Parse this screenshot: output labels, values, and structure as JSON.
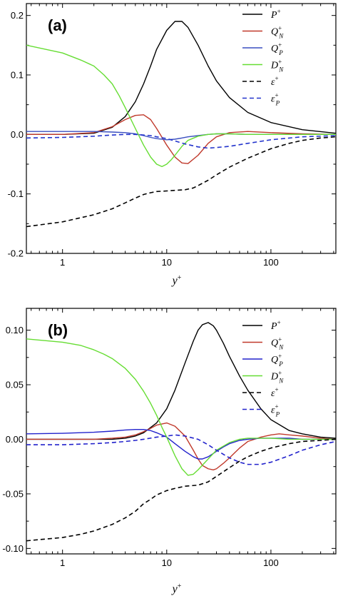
{
  "chart_data": [
    {
      "type": "line",
      "panel_label": "(a)",
      "xlabel": "y+",
      "xscale": "log",
      "xlim": [
        0.45,
        420
      ],
      "ylim": [
        -0.2,
        0.22
      ],
      "x_ticks": [
        {
          "v": 1,
          "label": "1"
        },
        {
          "v": 10,
          "label": "10"
        },
        {
          "v": 100,
          "label": "100"
        }
      ],
      "y_ticks": [
        {
          "v": -0.2,
          "label": "-0.2"
        },
        {
          "v": -0.1,
          "label": "-0.1"
        },
        {
          "v": 0.0,
          "label": "0.0"
        },
        {
          "v": 0.1,
          "label": "0.1"
        },
        {
          "v": 0.2,
          "label": "0.2"
        }
      ],
      "legend_position": "top-right",
      "series": [
        {
          "name": "P+",
          "base": "P",
          "sup": "+",
          "sub": "",
          "color": "#000000",
          "dash": "solid",
          "x": [
            0.45,
            1,
            2,
            3,
            4,
            5,
            6,
            7,
            8,
            10,
            12,
            14,
            16,
            20,
            25,
            30,
            40,
            60,
            100,
            200,
            420
          ],
          "y": [
            0,
            0,
            0.002,
            0.012,
            0.03,
            0.055,
            0.085,
            0.115,
            0.143,
            0.175,
            0.19,
            0.19,
            0.18,
            0.15,
            0.115,
            0.09,
            0.062,
            0.037,
            0.02,
            0.008,
            0.002
          ]
        },
        {
          "name": "Q+N",
          "base": "Q",
          "sup": "+",
          "sub": "N",
          "color": "#c0392b",
          "dash": "solid",
          "x": [
            0.45,
            1,
            2,
            3,
            4,
            5,
            6,
            7,
            8,
            10,
            12,
            14,
            16,
            20,
            25,
            30,
            40,
            60,
            100,
            200,
            420
          ],
          "y": [
            0,
            0,
            0.003,
            0.013,
            0.025,
            0.032,
            0.033,
            0.025,
            0.01,
            -0.018,
            -0.038,
            -0.048,
            -0.049,
            -0.035,
            -0.015,
            -0.004,
            0.003,
            0.005,
            0.003,
            0.001,
            0
          ]
        },
        {
          "name": "Q+P",
          "base": "Q",
          "sup": "+",
          "sub": "P",
          "color": "#3a4fc0",
          "dash": "solid",
          "x": [
            0.45,
            1,
            2,
            3,
            4,
            5,
            6,
            7,
            8,
            10,
            12,
            14,
            16,
            20,
            25,
            30,
            40,
            60,
            100,
            200,
            420
          ],
          "y": [
            0.005,
            0.005,
            0.005,
            0.004,
            0.003,
            0.001,
            -0.002,
            -0.005,
            -0.007,
            -0.009,
            -0.008,
            -0.006,
            -0.004,
            -0.002,
            0,
            0.001,
            0.001,
            0,
            0,
            0,
            0
          ]
        },
        {
          "name": "D+N",
          "base": "D",
          "sup": "+",
          "sub": "N",
          "color": "#66dd33",
          "dash": "solid",
          "x": [
            0.45,
            1,
            1.5,
            2,
            2.5,
            3,
            3.5,
            4,
            5,
            6,
            7,
            8,
            9,
            10,
            11,
            12,
            14,
            16,
            20,
            25,
            30,
            40,
            60,
            100,
            200,
            420
          ],
          "y": [
            0.15,
            0.137,
            0.125,
            0.115,
            0.1,
            0.085,
            0.065,
            0.045,
            0.01,
            -0.018,
            -0.038,
            -0.05,
            -0.054,
            -0.05,
            -0.043,
            -0.035,
            -0.02,
            -0.01,
            -0.003,
            0,
            0.001,
            0.001,
            0,
            0,
            0,
            0
          ]
        },
        {
          "name": "ε+",
          "base": "ε",
          "sup": "+",
          "sub": "",
          "color": "#000000",
          "dash": "dashed",
          "x": [
            0.45,
            1,
            2,
            3,
            4,
            5,
            6,
            7,
            8,
            10,
            12,
            15,
            18,
            20,
            25,
            30,
            40,
            60,
            80,
            100,
            150,
            200,
            300,
            420
          ],
          "y": [
            -0.155,
            -0.147,
            -0.135,
            -0.125,
            -0.115,
            -0.107,
            -0.101,
            -0.098,
            -0.096,
            -0.095,
            -0.094,
            -0.093,
            -0.09,
            -0.086,
            -0.077,
            -0.068,
            -0.055,
            -0.04,
            -0.031,
            -0.024,
            -0.015,
            -0.01,
            -0.006,
            -0.004
          ]
        },
        {
          "name": "ε+P",
          "base": "ε",
          "sup": "+",
          "sub": "P",
          "color": "#2233cc",
          "dash": "dashed",
          "x": [
            0.45,
            1,
            2,
            3,
            4,
            5,
            6,
            7,
            8,
            10,
            12,
            15,
            20,
            25,
            30,
            40,
            60,
            100,
            200,
            420
          ],
          "y": [
            -0.006,
            -0.005,
            -0.003,
            -0.001,
            0,
            0,
            -0.001,
            -0.002,
            -0.004,
            -0.007,
            -0.011,
            -0.016,
            -0.021,
            -0.023,
            -0.022,
            -0.02,
            -0.015,
            -0.009,
            -0.004,
            -0.002
          ]
        }
      ]
    },
    {
      "type": "line",
      "panel_label": "(b)",
      "xlabel": "y+",
      "xscale": "log",
      "xlim": [
        0.45,
        420
      ],
      "ylim": [
        -0.105,
        0.12
      ],
      "x_ticks": [
        {
          "v": 1,
          "label": "1"
        },
        {
          "v": 10,
          "label": "10"
        },
        {
          "v": 100,
          "label": "100"
        }
      ],
      "y_ticks": [
        {
          "v": -0.1,
          "label": "-0.10"
        },
        {
          "v": -0.05,
          "label": "-0.05"
        },
        {
          "v": 0.0,
          "label": "0.00"
        },
        {
          "v": 0.05,
          "label": "0.05"
        },
        {
          "v": 0.1,
          "label": "0.10"
        }
      ],
      "legend_position": "top-right",
      "series": [
        {
          "name": "P+",
          "base": "P",
          "sup": "+",
          "sub": "",
          "color": "#000000",
          "dash": "solid",
          "x": [
            0.45,
            1,
            2,
            3,
            4,
            5,
            6,
            8,
            10,
            12,
            15,
            18,
            20,
            22,
            25,
            28,
            30,
            35,
            40,
            50,
            60,
            80,
            100,
            150,
            200,
            300,
            420
          ],
          "y": [
            0,
            0,
            0,
            0,
            0.001,
            0.003,
            0.006,
            0.015,
            0.028,
            0.045,
            0.07,
            0.09,
            0.1,
            0.105,
            0.107,
            0.104,
            0.1,
            0.088,
            0.076,
            0.058,
            0.045,
            0.028,
            0.018,
            0.008,
            0.005,
            0.002,
            0.001
          ]
        },
        {
          "name": "Q+N",
          "base": "Q",
          "sup": "+",
          "sub": "N",
          "color": "#c0392b",
          "dash": "solid",
          "x": [
            0.45,
            1,
            2,
            3,
            4,
            5,
            6,
            7,
            8,
            10,
            12,
            15,
            18,
            20,
            22,
            25,
            28,
            30,
            35,
            40,
            50,
            60,
            80,
            100,
            120,
            150,
            200,
            300,
            420
          ],
          "y": [
            0,
            0,
            0,
            0.001,
            0.002,
            0.004,
            0.007,
            0.01,
            0.013,
            0.015,
            0.012,
            0.003,
            -0.01,
            -0.018,
            -0.024,
            -0.027,
            -0.028,
            -0.027,
            -0.022,
            -0.017,
            -0.008,
            -0.002,
            0.002,
            0.004,
            0.005,
            0.004,
            0.003,
            0.001,
            0
          ]
        },
        {
          "name": "Q+P",
          "base": "Q",
          "sup": "+",
          "sub": "P",
          "color": "#2222cc",
          "dash": "solid",
          "x": [
            0.45,
            1,
            2,
            3,
            4,
            5,
            6,
            7,
            8,
            10,
            12,
            15,
            18,
            20,
            22,
            25,
            28,
            30,
            35,
            40,
            50,
            60,
            80,
            100,
            150,
            200,
            300,
            420
          ],
          "y": [
            0.005,
            0.0055,
            0.0065,
            0.0075,
            0.0085,
            0.009,
            0.009,
            0.008,
            0.006,
            0.002,
            -0.004,
            -0.011,
            -0.016,
            -0.018,
            -0.018,
            -0.016,
            -0.013,
            -0.011,
            -0.007,
            -0.004,
            -0.001,
            0,
            0.001,
            0.001,
            0.001,
            0,
            0,
            0
          ]
        },
        {
          "name": "D+N",
          "base": "D",
          "sup": "+",
          "sub": "N",
          "color": "#66dd33",
          "dash": "solid",
          "x": [
            0.45,
            1,
            1.5,
            2,
            2.5,
            3,
            4,
            5,
            6,
            7,
            8,
            9,
            10,
            12,
            14,
            16,
            18,
            20,
            25,
            30,
            40,
            50,
            60,
            80,
            100,
            150,
            200,
            300,
            420
          ],
          "y": [
            0.092,
            0.089,
            0.086,
            0.082,
            0.078,
            0.074,
            0.065,
            0.055,
            0.044,
            0.033,
            0.022,
            0.011,
            0.002,
            -0.015,
            -0.027,
            -0.033,
            -0.032,
            -0.028,
            -0.018,
            -0.01,
            -0.003,
            0,
            0.001,
            0.001,
            0.001,
            0,
            0,
            0,
            0
          ]
        },
        {
          "name": "ε+",
          "base": "ε",
          "sup": "+",
          "sub": "",
          "color": "#000000",
          "dash": "dashed",
          "x": [
            0.45,
            1,
            1.5,
            2,
            3,
            4,
            5,
            6,
            7,
            8,
            10,
            12,
            15,
            20,
            25,
            30,
            40,
            50,
            60,
            80,
            100,
            150,
            200,
            300,
            420
          ],
          "y": [
            -0.093,
            -0.09,
            -0.087,
            -0.084,
            -0.078,
            -0.072,
            -0.066,
            -0.059,
            -0.055,
            -0.051,
            -0.047,
            -0.045,
            -0.043,
            -0.042,
            -0.039,
            -0.034,
            -0.026,
            -0.02,
            -0.016,
            -0.011,
            -0.008,
            -0.004,
            -0.002,
            -0.001,
            0
          ]
        },
        {
          "name": "ε+P",
          "base": "ε",
          "sup": "+",
          "sub": "P",
          "color": "#2222cc",
          "dash": "dashed",
          "x": [
            0.45,
            1,
            2,
            3,
            4,
            5,
            6,
            8,
            10,
            12,
            15,
            20,
            25,
            30,
            40,
            50,
            60,
            80,
            100,
            150,
            200,
            300,
            420
          ],
          "y": [
            -0.005,
            -0.005,
            -0.004,
            -0.003,
            -0.002,
            -0.001,
            0,
            0.002,
            0.003,
            0.004,
            0.003,
            0,
            -0.005,
            -0.01,
            -0.017,
            -0.021,
            -0.023,
            -0.023,
            -0.021,
            -0.015,
            -0.01,
            -0.005,
            -0.002
          ]
        }
      ]
    }
  ]
}
